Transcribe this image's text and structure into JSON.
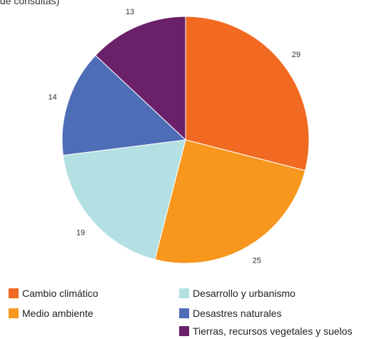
{
  "chart_data": {
    "type": "pie",
    "title": "de consultas)",
    "categories": [
      "Cambio climático",
      "Medio ambiente",
      "Desarrollo y urbanismo",
      "Desastres naturales",
      "Tierras, recursos vegetales y suelos"
    ],
    "values": [
      29,
      25,
      19,
      14,
      13
    ],
    "colors": [
      "#f26a22",
      "#f7971e",
      "#b2e0e3",
      "#4e6db7",
      "#6b2169"
    ],
    "legend_position": "bottom"
  }
}
